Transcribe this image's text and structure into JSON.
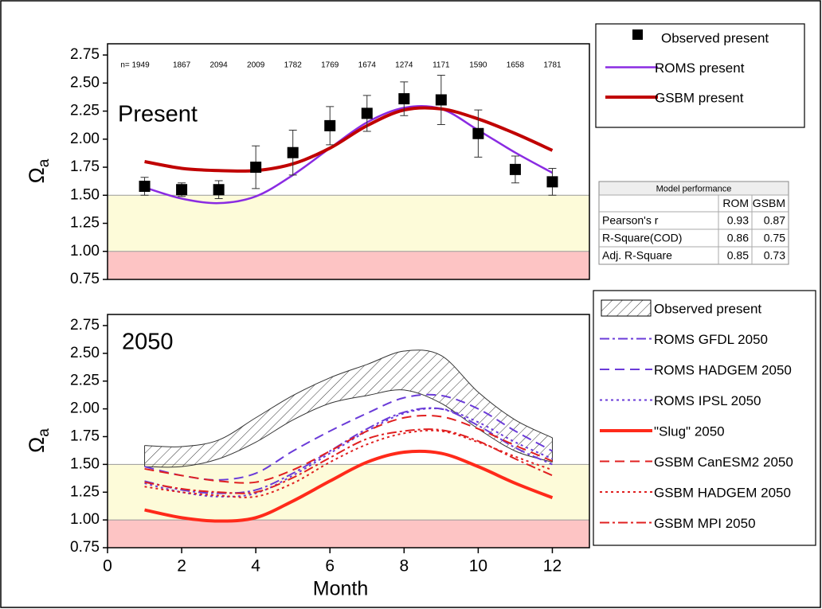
{
  "chart_data": [
    {
      "type": "line",
      "panel_label": "Present",
      "ylabel": "Ω",
      "ylabel_sub": "a",
      "xlim": [
        0,
        13
      ],
      "ylim": [
        0.75,
        2.85
      ],
      "yticks": [
        {
          "value": 0.75,
          "label": "0.75"
        },
        {
          "value": 1,
          "label": "1.00"
        },
        {
          "value": 1.25,
          "label": "1.25"
        },
        {
          "value": 1.5,
          "label": "1.50"
        },
        {
          "value": 1.75,
          "label": "1.75"
        },
        {
          "value": 2,
          "label": "2.00"
        },
        {
          "value": 2.25,
          "label": "2.25"
        },
        {
          "value": 2.5,
          "label": "2.50"
        },
        {
          "value": 2.75,
          "label": "2.75"
        }
      ],
      "bands": [
        {
          "from": 1.0,
          "to": 1.5,
          "color": "#fdfbd9"
        },
        {
          "from": 0.75,
          "to": 1.0,
          "color": "#fdc4c4"
        }
      ],
      "x": [
        1,
        2,
        3,
        4,
        5,
        6,
        7,
        8,
        9,
        10,
        11,
        12
      ],
      "n_labels": [
        "n= 1949",
        "1867",
        "2094",
        "2009",
        "1782",
        "1769",
        "1674",
        "1274",
        "1171",
        "1590",
        "1658",
        "1781"
      ],
      "series": [
        {
          "name": "Observed present",
          "kind": "points",
          "color": "#000000",
          "values": [
            1.58,
            1.55,
            1.55,
            1.75,
            1.88,
            2.12,
            2.23,
            2.36,
            2.35,
            2.05,
            1.73,
            1.62
          ],
          "errors": [
            0.08,
            0.06,
            0.08,
            0.19,
            0.2,
            0.17,
            0.16,
            0.15,
            0.22,
            0.21,
            0.12,
            0.12
          ]
        },
        {
          "name": "ROMS present",
          "kind": "line",
          "color": "#8a2be2",
          "dash": "solid",
          "width": 2.5,
          "values": [
            1.57,
            1.47,
            1.43,
            1.49,
            1.68,
            1.92,
            2.15,
            2.28,
            2.27,
            2.08,
            1.88,
            1.7
          ]
        },
        {
          "name": "GSBM present",
          "kind": "line",
          "color": "#c00000",
          "dash": "solid",
          "width": 4,
          "values": [
            1.8,
            1.74,
            1.72,
            1.72,
            1.78,
            1.92,
            2.12,
            2.26,
            2.27,
            2.18,
            2.05,
            1.9
          ]
        }
      ],
      "table": {
        "title": "Model performance",
        "header": [
          "ROM",
          "GSBM"
        ],
        "rows": [
          [
            "Pearson's r",
            "0.93",
            "0.87"
          ],
          [
            "R-Square(COD)",
            "0.86",
            "0.75"
          ],
          [
            "Adj. R-Square",
            "0.85",
            "0.73"
          ]
        ]
      }
    },
    {
      "type": "line",
      "panel_label": "2050",
      "ylabel": "Ω",
      "ylabel_sub": "a",
      "xlabel": "Month",
      "xlim": [
        0,
        13
      ],
      "ylim": [
        0.75,
        2.85
      ],
      "xticks": [
        0,
        2,
        4,
        6,
        8,
        10,
        12
      ],
      "yticks": [
        {
          "value": 0.75,
          "label": "0.75"
        },
        {
          "value": 1,
          "label": "1.00"
        },
        {
          "value": 1.25,
          "label": "1.25"
        },
        {
          "value": 1.5,
          "label": "1.50"
        },
        {
          "value": 1.75,
          "label": "1.75"
        },
        {
          "value": 2,
          "label": "2.00"
        },
        {
          "value": 2.25,
          "label": "2.25"
        },
        {
          "value": 2.5,
          "label": "2.50"
        },
        {
          "value": 2.75,
          "label": "2.75"
        }
      ],
      "bands": [
        {
          "from": 1.0,
          "to": 1.5,
          "color": "#fdfbd9"
        },
        {
          "from": 0.75,
          "to": 1.0,
          "color": "#fdc4c4"
        }
      ],
      "x": [
        1,
        2,
        3,
        4,
        5,
        6,
        7,
        8,
        9,
        10,
        11,
        12
      ],
      "series": [
        {
          "name": "Observed present",
          "kind": "band",
          "color": "#000000",
          "upper": [
            1.67,
            1.66,
            1.72,
            1.92,
            2.12,
            2.28,
            2.4,
            2.52,
            2.48,
            2.15,
            1.9,
            1.74
          ],
          "lower": [
            1.48,
            1.48,
            1.55,
            1.7,
            1.9,
            2.05,
            2.12,
            2.17,
            2.05,
            1.82,
            1.62,
            1.52
          ]
        },
        {
          "name": "ROMS GFDL 2050",
          "kind": "line",
          "color": "#6a3bd8",
          "dash": "dashdot",
          "width": 2,
          "values": [
            1.35,
            1.27,
            1.24,
            1.27,
            1.42,
            1.62,
            1.82,
            1.97,
            2.0,
            1.85,
            1.65,
            1.5
          ]
        },
        {
          "name": "ROMS HADGEM 2050",
          "kind": "line",
          "color": "#6a3bd8",
          "dash": "dash",
          "width": 2,
          "values": [
            1.48,
            1.4,
            1.36,
            1.42,
            1.62,
            1.8,
            1.96,
            2.1,
            2.12,
            2.0,
            1.8,
            1.62
          ]
        },
        {
          "name": "ROMS IPSL 2050",
          "kind": "line",
          "color": "#6a3bd8",
          "dash": "dot",
          "width": 2,
          "values": [
            1.33,
            1.25,
            1.21,
            1.24,
            1.4,
            1.6,
            1.8,
            1.96,
            2.0,
            1.88,
            1.7,
            1.55
          ]
        },
        {
          "name": "\"Slug\" 2050",
          "kind": "line",
          "color": "#ff2a1a",
          "dash": "solid",
          "width": 4,
          "values": [
            1.09,
            1.02,
            0.99,
            1.02,
            1.17,
            1.35,
            1.52,
            1.61,
            1.6,
            1.48,
            1.33,
            1.2
          ]
        },
        {
          "name": "GSBM CanESM2 2050",
          "kind": "line",
          "color": "#e02020",
          "dash": "dash",
          "width": 2,
          "values": [
            1.46,
            1.4,
            1.35,
            1.34,
            1.45,
            1.62,
            1.8,
            1.92,
            1.93,
            1.82,
            1.67,
            1.53
          ]
        },
        {
          "name": "GSBM HADGEM 2050",
          "kind": "line",
          "color": "#e02020",
          "dash": "dot",
          "width": 2,
          "values": [
            1.3,
            1.25,
            1.22,
            1.21,
            1.33,
            1.52,
            1.68,
            1.78,
            1.8,
            1.7,
            1.57,
            1.45
          ]
        },
        {
          "name": "GSBM MPI 2050",
          "kind": "line",
          "color": "#e02020",
          "dash": "dashdot",
          "width": 2,
          "values": [
            1.34,
            1.28,
            1.25,
            1.25,
            1.38,
            1.56,
            1.73,
            1.8,
            1.81,
            1.71,
            1.55,
            1.4
          ]
        }
      ]
    }
  ]
}
